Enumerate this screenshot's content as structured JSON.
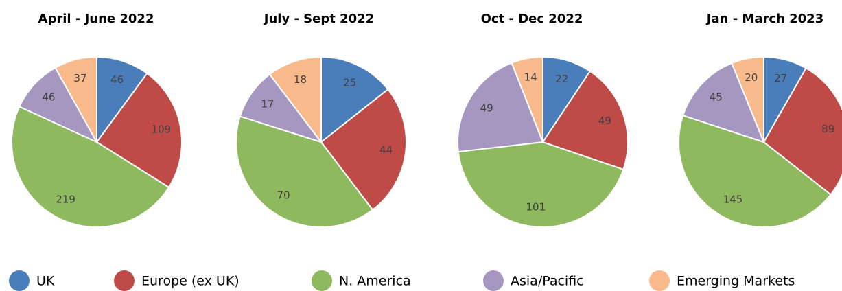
{
  "legend": {
    "labels": [
      "UK",
      "Europe (ex UK)",
      "N. America",
      "Asia/Pacific",
      "Emerging Markets"
    ],
    "colors": [
      "#4a7ebb",
      "#be4b48",
      "#8fb95f",
      "#a597c0",
      "#f8b98b"
    ]
  },
  "chart_data": [
    {
      "type": "pie",
      "title": "April - June 2022",
      "values": [
        46,
        109,
        219,
        46,
        37
      ]
    },
    {
      "type": "pie",
      "title": "July - Sept 2022",
      "values": [
        25,
        44,
        70,
        17,
        18
      ]
    },
    {
      "type": "pie",
      "title": "Oct - Dec 2022",
      "values": [
        22,
        49,
        101,
        49,
        14
      ]
    },
    {
      "type": "pie",
      "title": "Jan - March 2023",
      "values": [
        27,
        89,
        145,
        45,
        20
      ]
    }
  ]
}
